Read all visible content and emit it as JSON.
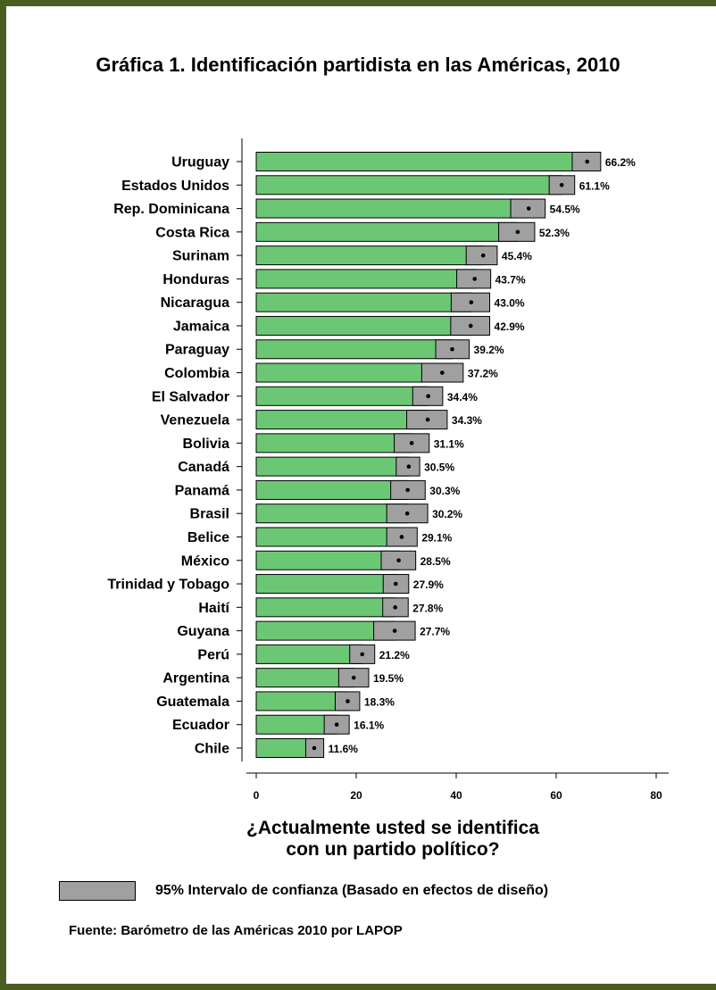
{
  "title": "Gráfica 1. Identificación partidista en las Américas, 2010",
  "x_axis_title_line1": "¿Actualmente usted se identifica",
  "x_axis_title_line2": "con un partido político?",
  "legend_label": "95% Intervalo de confianza (Basado en efectos de diseño)",
  "source": "Fuente: Barómetro de las Américas 2010 por LAPOP",
  "colors": {
    "bar": "#6cc774",
    "ci": "#a0a0a0",
    "frame": "#4a5e23"
  },
  "chart_data": {
    "type": "bar",
    "orientation": "horizontal",
    "title": "Gráfica 1. Identificación partidista en las Américas, 2010",
    "xlabel": "¿Actualmente usted se identifica con un partido político?",
    "xlim": [
      0,
      80
    ],
    "xticks": [
      0,
      20,
      40,
      60,
      80
    ],
    "categories": [
      "Uruguay",
      "Estados Unidos",
      "Rep. Dominicana",
      "Costa Rica",
      "Surinam",
      "Honduras",
      "Nicaragua",
      "Jamaica",
      "Paraguay",
      "Colombia",
      "El Salvador",
      "Venezuela",
      "Bolivia",
      "Canadá",
      "Panamá",
      "Brasil",
      "Belice",
      "México",
      "Trinidad y Tobago",
      "Haití",
      "Guyana",
      "Perú",
      "Argentina",
      "Guatemala",
      "Ecuador",
      "Chile"
    ],
    "values": [
      66.2,
      61.1,
      54.5,
      52.3,
      45.4,
      43.7,
      43.0,
      42.9,
      39.2,
      37.2,
      34.4,
      34.3,
      31.1,
      30.5,
      30.3,
      30.2,
      29.1,
      28.5,
      27.9,
      27.8,
      27.7,
      21.2,
      19.5,
      18.3,
      16.1,
      11.6
    ],
    "labels": [
      "66.2%",
      "61.1%",
      "54.5%",
      "52.3%",
      "45.4%",
      "43.7%",
      "43.0%",
      "42.9%",
      "39.2%",
      "37.2%",
      "34.4%",
      "34.3%",
      "31.1%",
      "30.5%",
      "30.3%",
      "30.2%",
      "29.1%",
      "28.5%",
      "27.9%",
      "27.8%",
      "27.7%",
      "21.2%",
      "19.5%",
      "18.3%",
      "16.1%",
      "11.6%"
    ],
    "ci_low": [
      63.2,
      58.6,
      50.9,
      48.5,
      42.0,
      40.1,
      39.0,
      38.9,
      35.9,
      33.1,
      31.3,
      30.1,
      27.6,
      28.0,
      26.9,
      26.1,
      26.1,
      25.0,
      25.4,
      25.3,
      23.5,
      18.7,
      16.5,
      15.8,
      13.6,
      9.9
    ],
    "ci_high": [
      68.9,
      63.7,
      57.8,
      55.7,
      48.2,
      46.9,
      46.7,
      46.7,
      42.6,
      41.4,
      37.3,
      38.2,
      34.6,
      32.7,
      33.8,
      34.3,
      32.2,
      31.9,
      30.5,
      30.4,
      31.8,
      23.7,
      22.5,
      20.7,
      18.6,
      13.5
    ],
    "legend": "95% Intervalo de confianza (Basado en efectos de diseño)"
  }
}
